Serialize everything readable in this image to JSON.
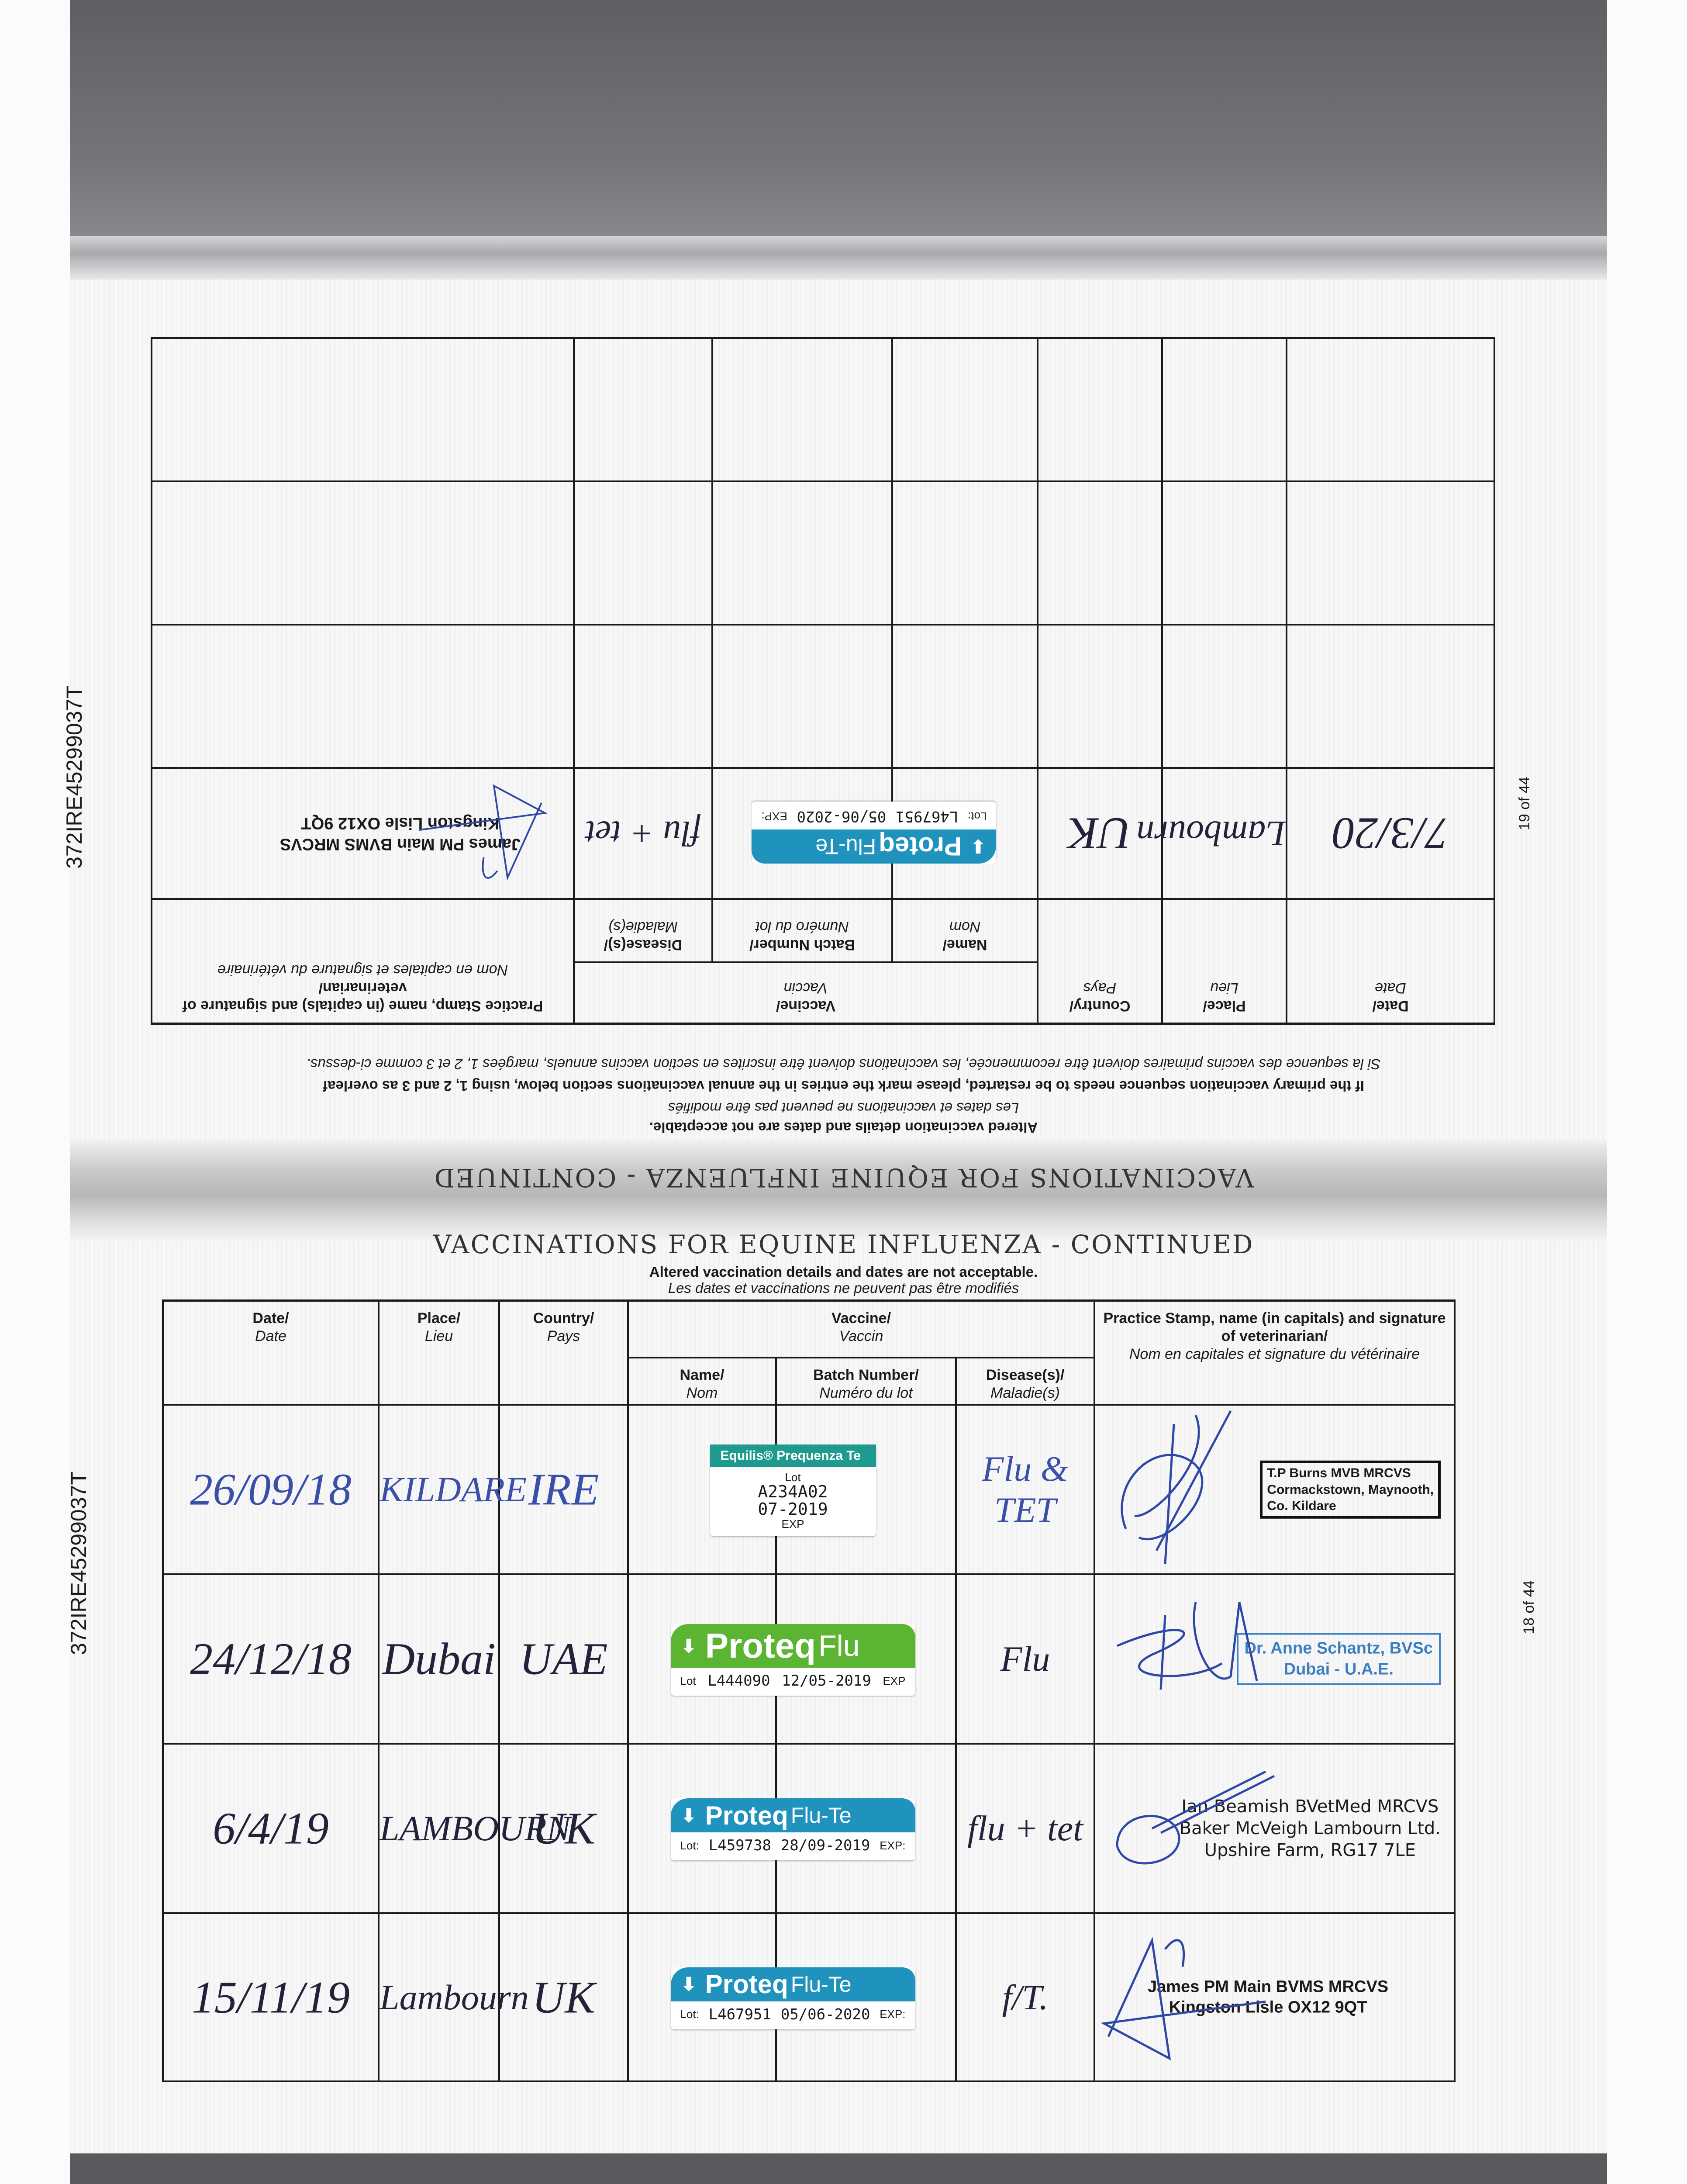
{
  "document": {
    "passport_id": "372IRE45299037T",
    "heading": "VACCINATIONS FOR EQUINE INFLUENZA - CONTINUED",
    "notice_en": "Altered vaccination details and dates are not acceptable.",
    "notice_fr": "Les dates et vaccinations ne peuvent pas être modifiés",
    "restart_note_en": "If the primary vaccination sequence needs to be restarted, please mark the entries in the annual vaccinations section below, using 1, 2 and 3 as overleaf",
    "restart_note_fr": "Si la sequence des vaccins primaires doivent être recommencée, les vaccinations doivent être inscrites en section vaccins annuels, margées 1, 2 et 3 comme ci-dessus."
  },
  "table_headers": {
    "date_en": "Date/",
    "date_fr": "Date",
    "place_en": "Place/",
    "place_fr": "Lieu",
    "country_en": "Country/",
    "country_fr": "Pays",
    "vaccine_en": "Vaccine/",
    "vaccine_fr": "Vaccin",
    "name_en": "Name/",
    "name_fr": "Nom",
    "batch_en": "Batch Number/",
    "batch_fr": "Numéro du lot",
    "disease_en": "Disease(s)/",
    "disease_fr": "Maladie(s)",
    "stamp_en": "Practice Stamp, name (in capitals) and signature of veterinarian/",
    "stamp_fr": "Nom en capitales et signature du vétérinaire"
  },
  "pages": {
    "upper": {
      "orientation": "upside-down",
      "page_number": "19 of 44",
      "empty_rows": 3,
      "rows": [
        {
          "date": "7/3/20",
          "place": "Lambourn",
          "country": "UK",
          "ink": "#22223a",
          "sticker": {
            "type": "flu-te",
            "brand": "Proteq",
            "product": "Flu-Te",
            "lot_label": "Lot:",
            "lot": "L467951",
            "expiry": "05/06-2020",
            "exp_label": "EXP:"
          },
          "disease": "flu + tet",
          "stamp": {
            "style": "strike",
            "lines": [
              "James PM Main BVMS MRCVS",
              "Kingston Lisle OX12 9QT"
            ]
          }
        }
      ]
    },
    "lower": {
      "orientation": "upright",
      "page_number": "18 of 44",
      "rows": [
        {
          "date": "26/09/18",
          "place": "KILDARE",
          "country": "IRE",
          "ink": "#3a4fa8",
          "sticker": {
            "type": "equilis",
            "brand": "Equilis® Prequenza Te",
            "product": "",
            "lot_label": "Lot",
            "lot": "A234A02",
            "expiry": "07-2019",
            "exp_label": "EXP"
          },
          "disease": "Flu & TET",
          "stamp": {
            "style": "box-black",
            "lines": [
              "T.P Burns MVB MRCVS",
              "Cormackstown, Maynooth,",
              "Co. Kildare"
            ]
          }
        },
        {
          "date": "24/12/18",
          "place": "Dubai",
          "country": "UAE",
          "ink": "#22223a",
          "sticker": {
            "type": "flu",
            "brand": "Proteq",
            "product": "Flu",
            "lot_label": "Lot",
            "lot": "L444090",
            "expiry": "12/05-2019",
            "exp_label": "EXP"
          },
          "disease": "Flu",
          "stamp": {
            "style": "box-blue",
            "lines": [
              "Dr. Anne Schantz, BVSc",
              "Dubai - U.A.E."
            ]
          }
        },
        {
          "date": "6/4/19",
          "place": "LAMBOURN",
          "country": "UK",
          "ink": "#22223a",
          "sticker": {
            "type": "flu-te",
            "brand": "Proteq",
            "product": "Flu-Te",
            "lot_label": "Lot:",
            "lot": "L459738",
            "expiry": "28/09-2019",
            "exp_label": "EXP:"
          },
          "disease": "flu + tet",
          "stamp": {
            "style": "plain",
            "lines": [
              "Ian Beamish BVetMed MRCVS",
              "Baker McVeigh Lambourn Ltd.",
              "Upshire Farm, RG17 7LE"
            ]
          }
        },
        {
          "date": "15/11/19",
          "place": "Lambourn",
          "country": "UK",
          "ink": "#22223a",
          "sticker": {
            "type": "flu-te",
            "brand": "Proteq",
            "product": "Flu-Te",
            "lot_label": "Lot:",
            "lot": "L467951",
            "expiry": "05/06-2020",
            "exp_label": "EXP:"
          },
          "disease": "f/T.",
          "stamp": {
            "style": "strike",
            "lines": [
              "James PM Main BVMS MRCVS",
              "Kingston Lisle OX12 9QT"
            ]
          }
        }
      ]
    }
  },
  "colors": {
    "signature_ink": "#2f48a8",
    "proteq_flu": "#5cb532",
    "proteq_flu_te": "#1f93bd",
    "equilis": "#1f9a8e"
  }
}
